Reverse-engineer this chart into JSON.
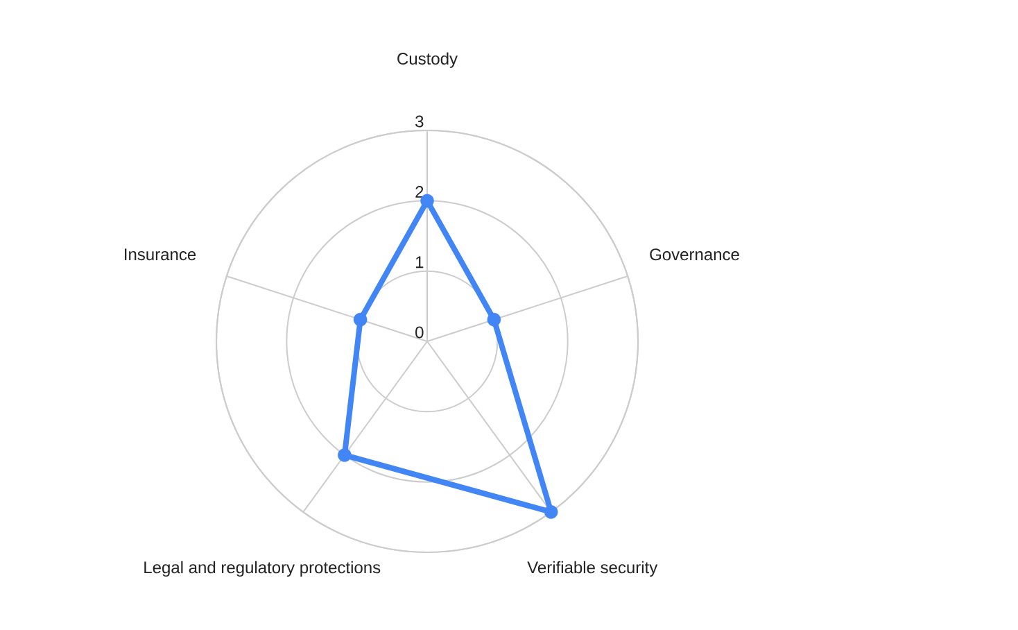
{
  "chart_data": {
    "type": "radar",
    "categories": [
      "Custody",
      "Governance",
      "Verifiable security",
      "Legal and regulatory protections",
      "Insurance"
    ],
    "series": [
      {
        "color": "#4285f4",
        "values": [
          2,
          1,
          3,
          2,
          1
        ]
      }
    ],
    "ylim": [
      0,
      3
    ],
    "yticks": [
      0,
      1,
      2,
      3
    ],
    "grid": true,
    "marker": "circle",
    "line_style": "solid"
  }
}
